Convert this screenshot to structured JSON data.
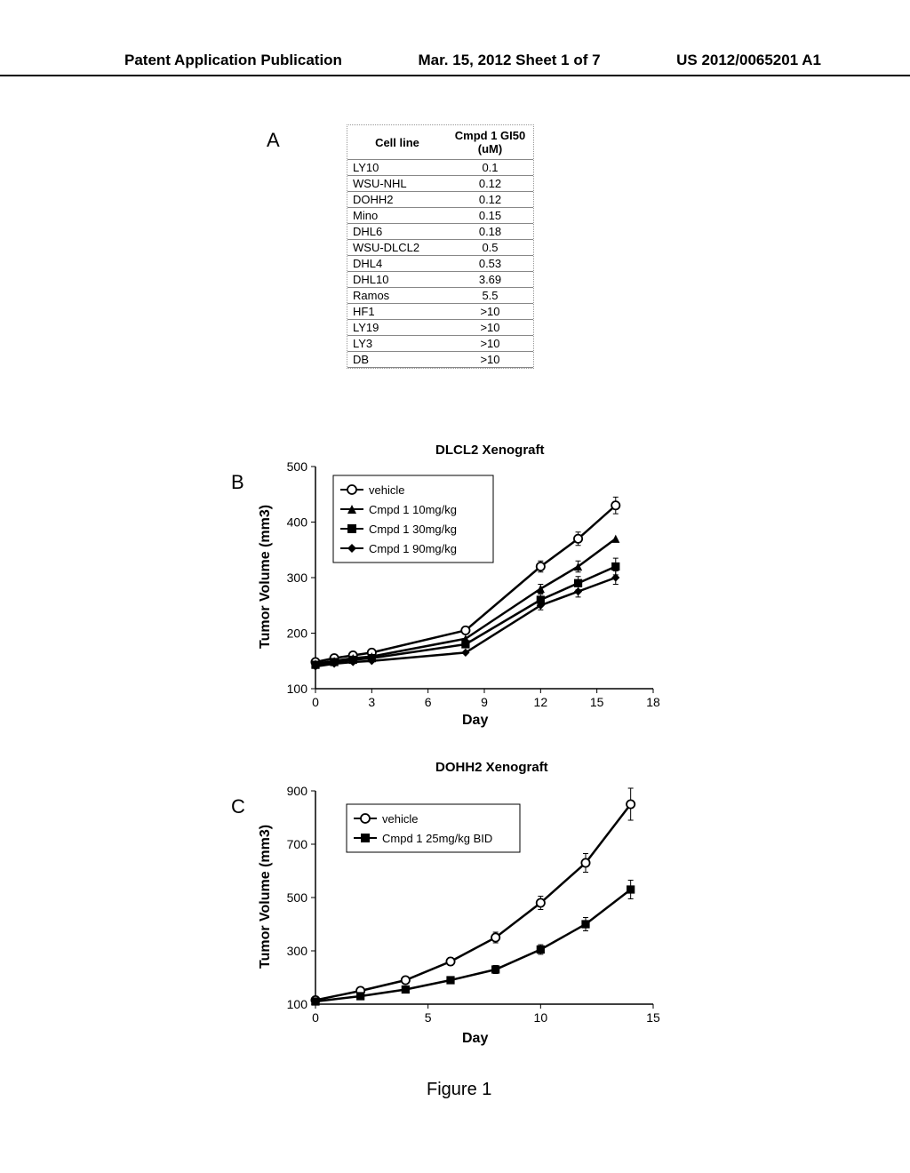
{
  "header": {
    "left": "Patent Application Publication",
    "center": "Mar. 15, 2012  Sheet 1 of 7",
    "right": "US 2012/0065201 A1"
  },
  "panelA": {
    "label": "A",
    "columns": [
      "Cell line",
      "Cmpd 1 GI50 (uM)"
    ],
    "rows": [
      [
        "LY10",
        "0.1"
      ],
      [
        "WSU-NHL",
        "0.12"
      ],
      [
        "DOHH2",
        "0.12"
      ],
      [
        "Mino",
        "0.15"
      ],
      [
        "DHL6",
        "0.18"
      ],
      [
        "WSU-DLCL2",
        "0.5"
      ],
      [
        "DHL4",
        "0.53"
      ],
      [
        "DHL10",
        "3.69"
      ],
      [
        "Ramos",
        "5.5"
      ],
      [
        "HF1",
        ">10"
      ],
      [
        "LY19",
        ">10"
      ],
      [
        "LY3",
        ">10"
      ],
      [
        "DB",
        ">10"
      ]
    ]
  },
  "panelB": {
    "label": "B",
    "title": "DLCL2 Xenograft",
    "ylabel": "Tumor Volume (mm3)",
    "xlabel": "Day",
    "xlim": [
      0,
      18
    ],
    "ylim": [
      100,
      500
    ],
    "xticks": [
      0,
      3,
      6,
      9,
      12,
      15,
      18
    ],
    "yticks": [
      100,
      200,
      300,
      400,
      500
    ],
    "legend": [
      {
        "label": "vehicle",
        "marker": "open-circle",
        "color": "#000000"
      },
      {
        "label": "Cmpd 1 10mg/kg",
        "marker": "triangle",
        "color": "#000000"
      },
      {
        "label": "Cmpd 1 30mg/kg",
        "marker": "square",
        "color": "#000000"
      },
      {
        "label": "Cmpd 1 90mg/kg",
        "marker": "diamond",
        "color": "#000000"
      }
    ],
    "series": {
      "vehicle": {
        "x": [
          0,
          1,
          2,
          3,
          8,
          12,
          14,
          16
        ],
        "y": [
          148,
          155,
          160,
          165,
          205,
          320,
          370,
          430
        ],
        "err": [
          0,
          0,
          0,
          0,
          0,
          10,
          12,
          15
        ]
      },
      "cmpd10": {
        "x": [
          0,
          1,
          2,
          3,
          8,
          12,
          14,
          16
        ],
        "y": [
          145,
          150,
          155,
          158,
          190,
          280,
          320,
          370
        ],
        "err": [
          0,
          0,
          0,
          0,
          0,
          8,
          10,
          0
        ]
      },
      "cmpd30": {
        "x": [
          0,
          1,
          2,
          3,
          8,
          12,
          14,
          16
        ],
        "y": [
          143,
          148,
          152,
          155,
          180,
          260,
          290,
          320
        ],
        "err": [
          0,
          0,
          0,
          0,
          0,
          10,
          12,
          15
        ]
      },
      "cmpd90": {
        "x": [
          0,
          1,
          2,
          3,
          8,
          12,
          14,
          16
        ],
        "y": [
          140,
          145,
          148,
          150,
          165,
          250,
          275,
          300
        ],
        "err": [
          0,
          0,
          0,
          0,
          0,
          8,
          10,
          12
        ]
      }
    },
    "line_width": 2.5,
    "marker_size": 6,
    "background_color": "#ffffff"
  },
  "panelC": {
    "label": "C",
    "title": "DOHH2 Xenograft",
    "ylabel": "Tumor Volume (mm3)",
    "xlabel": "Day",
    "xlim": [
      0,
      15
    ],
    "ylim": [
      100,
      900
    ],
    "xticks": [
      0,
      5,
      10,
      15
    ],
    "yticks": [
      100,
      300,
      500,
      700,
      900
    ],
    "legend": [
      {
        "label": "vehicle",
        "marker": "open-circle",
        "color": "#000000"
      },
      {
        "label": "Cmpd 1 25mg/kg BID",
        "marker": "square",
        "color": "#000000"
      }
    ],
    "series": {
      "vehicle": {
        "x": [
          0,
          2,
          4,
          6,
          8,
          10,
          12,
          14
        ],
        "y": [
          115,
          150,
          190,
          260,
          350,
          480,
          630,
          850
        ],
        "err": [
          0,
          0,
          0,
          15,
          20,
          25,
          35,
          60
        ]
      },
      "cmpd25": {
        "x": [
          0,
          2,
          4,
          6,
          8,
          10,
          12,
          14
        ],
        "y": [
          110,
          130,
          155,
          190,
          230,
          305,
          400,
          530
        ],
        "err": [
          0,
          0,
          0,
          12,
          15,
          18,
          25,
          35
        ]
      }
    },
    "line_width": 2.5,
    "marker_size": 6,
    "background_color": "#ffffff"
  },
  "figure_caption": "Figure 1"
}
